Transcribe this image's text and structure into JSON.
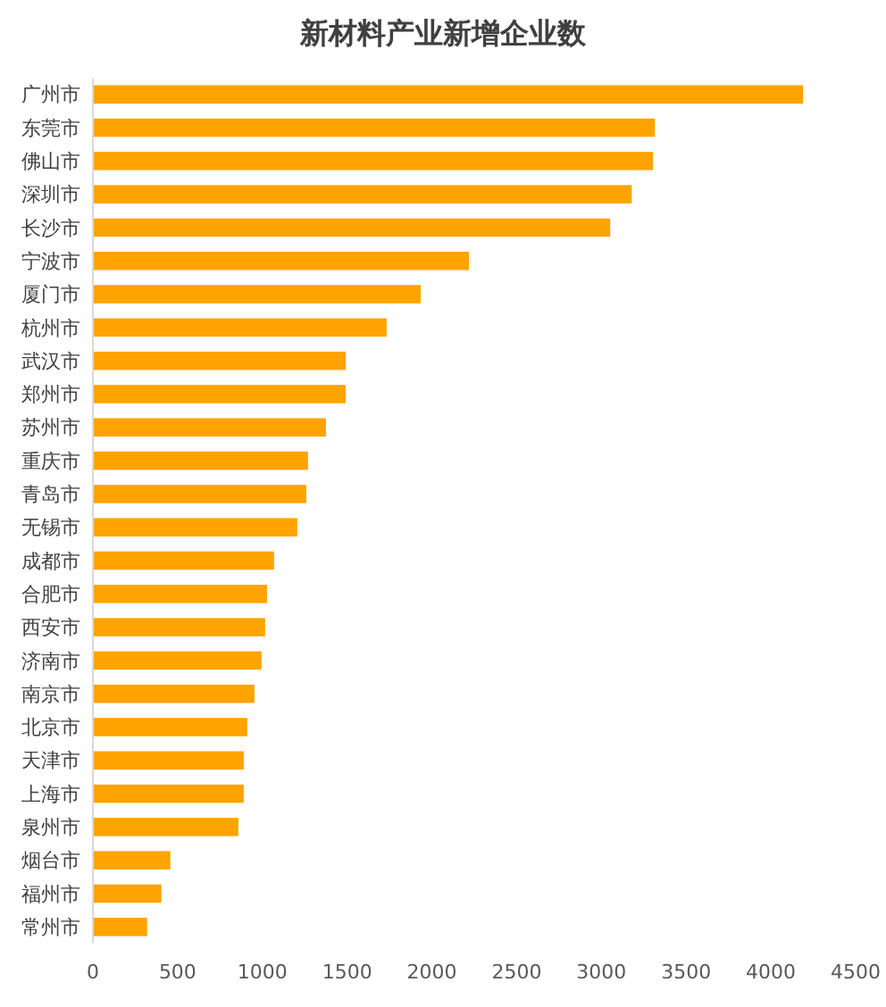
{
  "chart_data": {
    "type": "bar",
    "orientation": "horizontal",
    "title": "新材料产业新增企业数",
    "categories": [
      "广州市",
      "东莞市",
      "佛山市",
      "深圳市",
      "长沙市",
      "宁波市",
      "厦门市",
      "杭州市",
      "武汉市",
      "郑州市",
      "苏州市",
      "重庆市",
      "青岛市",
      "无锡市",
      "成都市",
      "合肥市",
      "西安市",
      "济南市",
      "南京市",
      "北京市",
      "天津市",
      "上海市",
      "泉州市",
      "烟台市",
      "福州市",
      "常州市"
    ],
    "values": [
      4190,
      3316,
      3305,
      3179,
      3052,
      2219,
      1934,
      1733,
      1491,
      1491,
      1375,
      1269,
      1259,
      1206,
      1069,
      1027,
      1016,
      995,
      953,
      911,
      890,
      890,
      858,
      457,
      404,
      320
    ],
    "color": "#ffa300",
    "xlim": [
      0,
      4500
    ],
    "xticks": [
      0,
      500,
      1000,
      1500,
      2000,
      2500,
      3000,
      3500,
      4000,
      4500
    ],
    "grid": false
  }
}
